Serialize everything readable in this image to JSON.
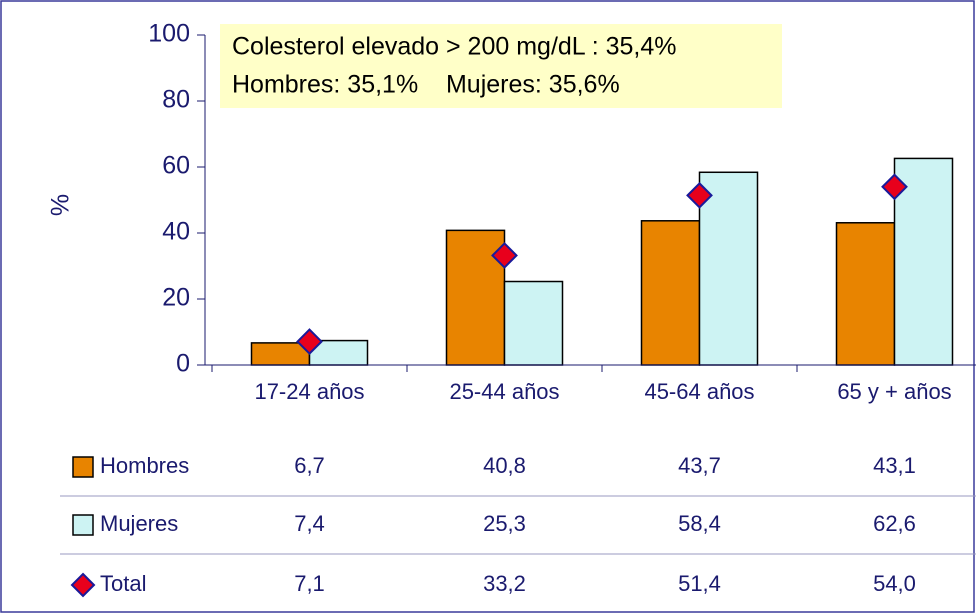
{
  "chart_data": {
    "type": "bar",
    "categories": [
      "17-24 años",
      "25-44 años",
      "45-64 años",
      "65 y  + años"
    ],
    "series": [
      {
        "name": "Hombres",
        "type": "bar",
        "color": "#e88400",
        "values": [
          6.7,
          40.8,
          43.7,
          43.1
        ],
        "value_labels": [
          "6,7",
          "40,8",
          "43,7",
          "43,1"
        ]
      },
      {
        "name": "Mujeres",
        "type": "bar",
        "color": "#cdf3f3",
        "values": [
          7.4,
          25.3,
          58.4,
          62.6
        ],
        "value_labels": [
          "7,4",
          "25,3",
          "58,4",
          "62,6"
        ]
      },
      {
        "name": "Total",
        "type": "diamond",
        "color": "#e8001c",
        "values": [
          7.1,
          33.2,
          51.4,
          54.0
        ],
        "value_labels": [
          "7,1",
          "33,2",
          "51,4",
          "54,0"
        ]
      }
    ],
    "ylabel": "%",
    "ylim": [
      0,
      100
    ],
    "yticks": [
      0,
      20,
      40,
      60,
      80,
      100
    ],
    "annotations": [
      "Colesterol elevado > 200 mg/dL : 35,4%",
      "Hombres: 35,1%    Mujeres: 35,6%"
    ]
  }
}
